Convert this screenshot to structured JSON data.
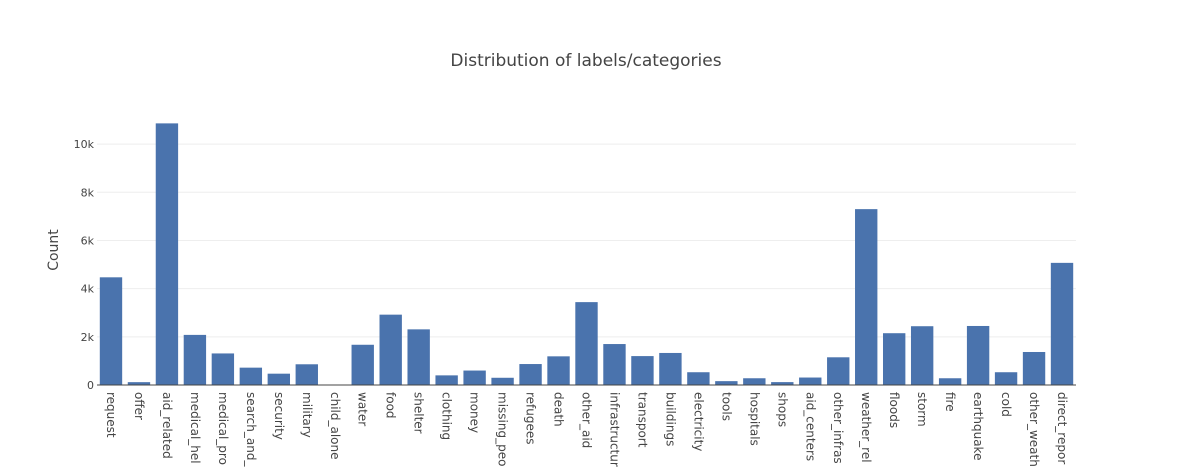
{
  "chart_data": {
    "type": "bar",
    "title": "Distribution of labels/categories",
    "xlabel": "",
    "ylabel": "Count",
    "ylim": [
      0,
      11000
    ],
    "yticks": [
      0,
      2000,
      4000,
      6000,
      8000,
      10000
    ],
    "ytick_labels": [
      "0",
      "2k",
      "4k",
      "6k",
      "8k",
      "10k"
    ],
    "grid": true,
    "legend": "none",
    "bar_color": "#4a73ad",
    "categories": [
      "request",
      "offer",
      "aid_related",
      "medical_hel",
      "medical_pro",
      "search_and_",
      "security",
      "military",
      "child_alone",
      "water",
      "food",
      "shelter",
      "clothing",
      "money",
      "missing_peo",
      "refugees",
      "death",
      "other_aid",
      "infrastructur",
      "transport",
      "buildings",
      "electricity",
      "tools",
      "hospitals",
      "shops",
      "aid_centers",
      "other_infras",
      "weather_rel",
      "floods",
      "storm",
      "fire",
      "earthquake",
      "cold",
      "other_weath",
      "direct_repor"
    ],
    "values": [
      4470,
      118,
      10860,
      2080,
      1310,
      720,
      470,
      860,
      0,
      1670,
      2920,
      2310,
      400,
      600,
      300,
      870,
      1190,
      3440,
      1700,
      1200,
      1330,
      530,
      160,
      280,
      120,
      310,
      1150,
      7300,
      2150,
      2440,
      280,
      2450,
      530,
      1370,
      5070
    ]
  }
}
